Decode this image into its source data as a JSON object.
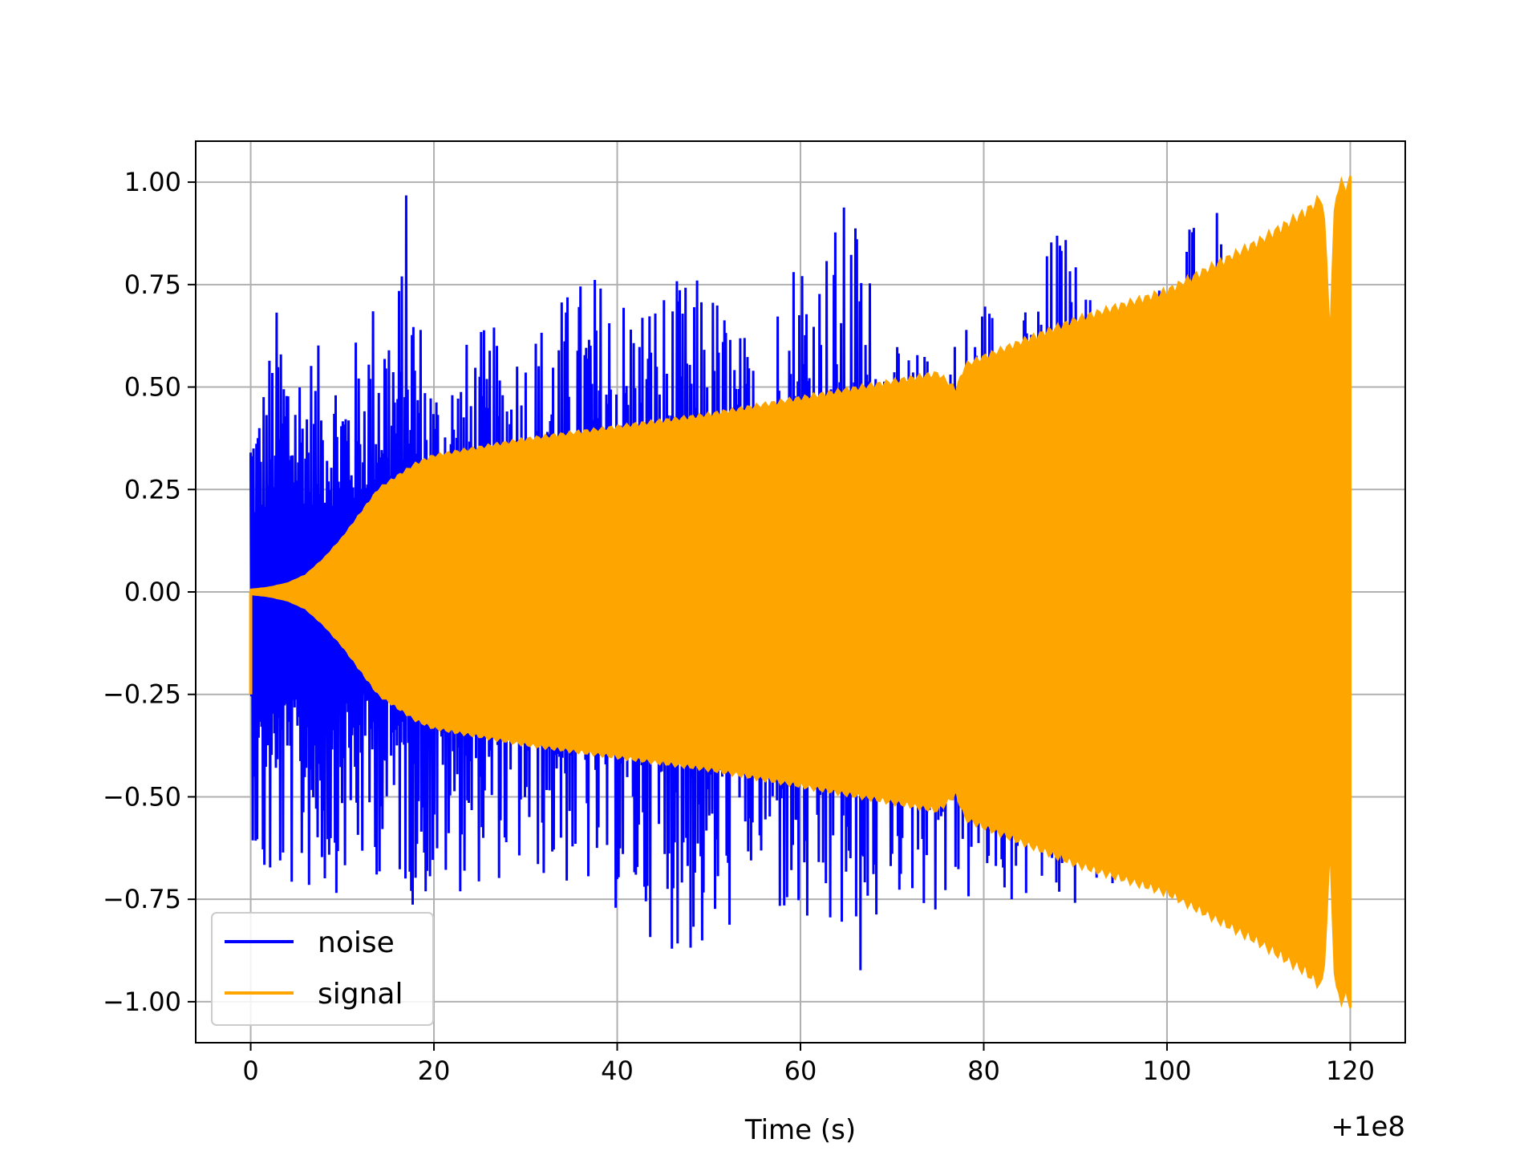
{
  "chart_data": {
    "type": "line",
    "title": "",
    "xlabel": "Time (s)",
    "ylabel": "",
    "x_offset_label": "+1e8",
    "xlim": [
      -6,
      126
    ],
    "ylim": [
      -1.1,
      1.1
    ],
    "x_ticks": [
      0,
      20,
      40,
      60,
      80,
      100,
      120
    ],
    "x_tick_labels": [
      "0",
      "20",
      "40",
      "60",
      "80",
      "100",
      "120"
    ],
    "y_ticks": [
      1.0,
      0.75,
      0.5,
      0.25,
      0.0,
      -0.25,
      -0.5,
      -0.75,
      -1.0
    ],
    "y_tick_labels": [
      "1.00",
      "0.75",
      "0.50",
      "0.25",
      "0.00",
      "−0.25",
      "−0.50",
      "−0.75",
      "−1.00"
    ],
    "grid": true,
    "legend_position": "lower-left",
    "series": [
      {
        "name": "noise",
        "color": "#0000ff",
        "envelope_x": [
          0,
          1,
          3,
          5,
          8,
          11,
          14,
          16,
          17,
          18,
          20,
          25,
          30,
          37,
          42,
          50,
          55,
          60,
          62,
          65,
          66,
          70,
          75,
          80,
          85,
          88,
          95,
          100,
          105,
          110
        ],
        "envelope_upper": [
          0.5,
          0.5,
          0.72,
          0.62,
          0.6,
          0.6,
          0.78,
          0.74,
          1.0,
          0.76,
          0.55,
          0.65,
          0.65,
          0.8,
          0.75,
          0.78,
          0.6,
          0.92,
          0.85,
          0.97,
          0.95,
          0.6,
          0.6,
          0.75,
          0.7,
          0.94,
          0.58,
          0.83,
          0.97,
          0.58
        ],
        "envelope_lower": [
          -0.55,
          -0.8,
          -0.75,
          -0.75,
          -0.75,
          -0.72,
          -0.7,
          -0.72,
          -0.75,
          -0.78,
          -0.76,
          -0.72,
          -0.7,
          -0.75,
          -0.82,
          -0.94,
          -0.72,
          -0.9,
          -0.88,
          -0.9,
          -1.0,
          -0.75,
          -0.8,
          -0.78,
          -0.78,
          -0.82,
          -0.72,
          -0.75,
          -0.75,
          -0.72
        ]
      },
      {
        "name": "signal",
        "color": "#ffa500",
        "envelope_x": [
          0,
          2,
          4,
          6,
          8,
          10,
          12,
          14,
          16,
          18,
          20,
          25,
          30,
          40,
          50,
          60,
          70,
          75,
          77,
          78,
          80,
          90,
          100,
          105,
          110,
          115,
          117,
          117.8,
          118.4,
          119,
          119.5,
          120
        ],
        "envelope_amp": [
          0.005,
          0.01,
          0.02,
          0.04,
          0.08,
          0.13,
          0.19,
          0.25,
          0.28,
          0.31,
          0.33,
          0.35,
          0.37,
          0.4,
          0.43,
          0.47,
          0.51,
          0.53,
          0.49,
          0.55,
          0.57,
          0.66,
          0.73,
          0.79,
          0.85,
          0.92,
          0.96,
          0.6,
          0.97,
          0.99,
          0.98,
          1.0
        ]
      }
    ]
  }
}
